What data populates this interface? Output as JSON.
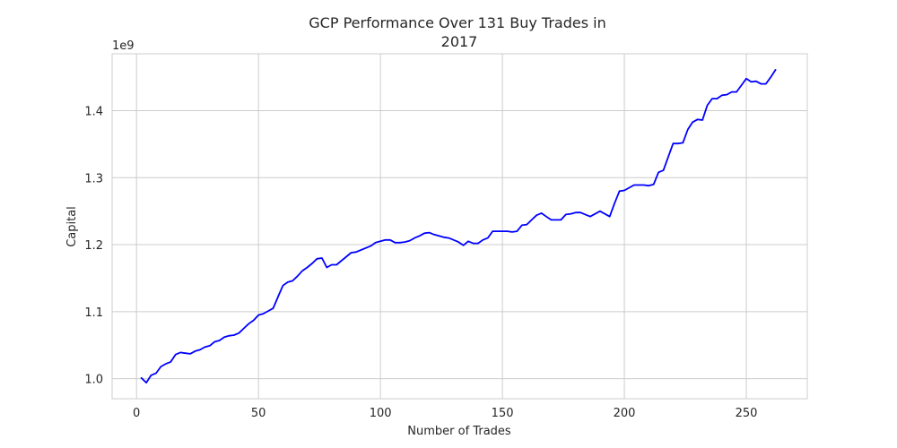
{
  "chart_data": {
    "type": "line",
    "title": "GCP Performance Over 131 Buy Trades in 2017",
    "title_lines": [
      "GCP Performance Over 131 Buy Trades in",
      "2017"
    ],
    "xlabel": "Number of Trades",
    "ylabel": "Capital",
    "y_offset_label": "1e9",
    "xlim": [
      -10,
      275
    ],
    "ylim": [
      0.97,
      1.485
    ],
    "x_ticks": [
      0,
      50,
      100,
      150,
      200,
      250
    ],
    "x_tick_labels": [
      "0",
      "50",
      "100",
      "150",
      "200",
      "250"
    ],
    "y_ticks": [
      1.0,
      1.1,
      1.2,
      1.3,
      1.4
    ],
    "y_tick_labels": [
      "1.0",
      "1.1",
      "1.2",
      "1.3",
      "1.4"
    ],
    "grid": true,
    "line_color": "#0000ff",
    "series": [
      {
        "x": [
          2,
          4,
          6,
          8,
          10,
          12,
          14,
          16,
          18,
          20,
          22,
          24,
          26,
          28,
          30,
          32,
          34,
          36,
          38,
          40,
          42,
          44,
          46,
          48,
          50,
          52,
          54,
          56,
          58,
          60,
          62,
          64,
          66,
          68,
          70,
          72,
          74,
          76,
          78,
          80,
          82,
          84,
          86,
          88,
          90,
          92,
          94,
          96,
          98,
          100,
          102,
          104,
          106,
          108,
          110,
          112,
          114,
          116,
          118,
          120,
          122,
          124,
          126,
          128,
          130,
          132,
          134,
          136,
          138,
          140,
          142,
          144,
          146,
          148,
          150,
          152,
          154,
          156,
          158,
          160,
          162,
          164,
          166,
          168,
          170,
          172,
          174,
          176,
          178,
          180,
          182,
          184,
          186,
          188,
          190,
          192,
          194,
          196,
          198,
          200,
          202,
          204,
          206,
          208,
          210,
          212,
          214,
          216,
          218,
          220,
          222,
          224,
          226,
          228,
          230,
          232,
          234,
          236,
          238,
          240,
          242,
          244,
          246,
          248,
          250,
          252,
          254,
          256,
          258,
          260,
          262
        ],
        "values": [
          1.001,
          0.994,
          1.005,
          1.008,
          1.018,
          1.022,
          1.025,
          1.036,
          1.039,
          1.038,
          1.037,
          1.041,
          1.043,
          1.047,
          1.049,
          1.055,
          1.057,
          1.062,
          1.064,
          1.065,
          1.068,
          1.075,
          1.082,
          1.087,
          1.095,
          1.097,
          1.101,
          1.105,
          1.122,
          1.139,
          1.144,
          1.146,
          1.153,
          1.161,
          1.166,
          1.172,
          1.179,
          1.18,
          1.166,
          1.17,
          1.17,
          1.176,
          1.182,
          1.188,
          1.189,
          1.192,
          1.195,
          1.198,
          1.203,
          1.205,
          1.207,
          1.207,
          1.203,
          1.203,
          1.204,
          1.206,
          1.21,
          1.213,
          1.217,
          1.218,
          1.215,
          1.213,
          1.211,
          1.21,
          1.207,
          1.204,
          1.199,
          1.205,
          1.202,
          1.202,
          1.207,
          1.21,
          1.22,
          1.22,
          1.22,
          1.22,
          1.219,
          1.22,
          1.229,
          1.23,
          1.237,
          1.244,
          1.247,
          1.242,
          1.237,
          1.237,
          1.237,
          1.245,
          1.246,
          1.248,
          1.248,
          1.245,
          1.242,
          1.246,
          1.25,
          1.246,
          1.242,
          1.262,
          1.28,
          1.281,
          1.285,
          1.289,
          1.289,
          1.289,
          1.288,
          1.29,
          1.308,
          1.311,
          1.331,
          1.351,
          1.351,
          1.352,
          1.372,
          1.383,
          1.387,
          1.386,
          1.408,
          1.418,
          1.418,
          1.423,
          1.424,
          1.428,
          1.428,
          1.438,
          1.448,
          1.443,
          1.444,
          1.44,
          1.44,
          1.45,
          1.461
        ]
      }
    ]
  }
}
